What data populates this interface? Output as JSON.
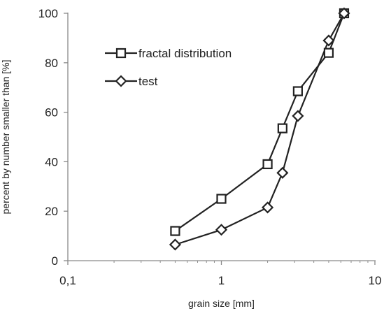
{
  "chart_data": {
    "type": "line",
    "xscale": "log",
    "xlim": [
      0.1,
      10
    ],
    "ylim": [
      0,
      100
    ],
    "xticks": [
      {
        "value": 0.1,
        "label": "0,1"
      },
      {
        "value": 1,
        "label": "1"
      },
      {
        "value": 10,
        "label": "10"
      }
    ],
    "yticks": [
      {
        "value": 0,
        "label": "0"
      },
      {
        "value": 20,
        "label": "20"
      },
      {
        "value": 40,
        "label": "40"
      },
      {
        "value": 60,
        "label": "60"
      },
      {
        "value": 80,
        "label": "80"
      },
      {
        "value": 100,
        "label": "100"
      }
    ],
    "xlabel": "grain size [mm]",
    "ylabel": "percent by number smaller than [%]",
    "grid": false,
    "legend_position": "top-left",
    "series": [
      {
        "name": "fractal distribution",
        "marker": "square",
        "color": "#222222",
        "x": [
          0.5,
          1,
          2,
          2.5,
          3.15,
          5,
          6.3
        ],
        "y": [
          12,
          25,
          39,
          53.5,
          68.5,
          84,
          100
        ]
      },
      {
        "name": "test",
        "marker": "diamond",
        "color": "#222222",
        "x": [
          0.5,
          1,
          2,
          2.5,
          3.15,
          5,
          6.3
        ],
        "y": [
          6.5,
          12.5,
          21.5,
          35.5,
          58.5,
          89,
          100
        ]
      }
    ]
  }
}
